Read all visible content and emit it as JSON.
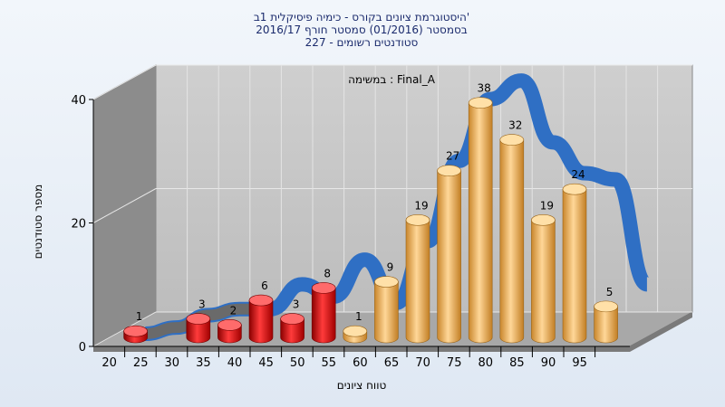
{
  "chart_data": {
    "type": "bar",
    "title_lines": [
      "היסטוגרמת ציונים בקורס - כימיה פיסיקלית 1ב'",
      "בסמסטר  (01/2016)  סמסטר חורף  2016/17",
      "סטודנטים רשומים - 227"
    ],
    "inner_label": "במשימה : Final_A",
    "xlabel": "טווח ציונים",
    "ylabel": "מספר סטודנטים",
    "x_ticks": [
      "20",
      "25",
      "30",
      "35",
      "40",
      "45",
      "50",
      "55",
      "60",
      "65",
      "70",
      "75",
      "80",
      "85",
      "90",
      "95"
    ],
    "y_ticks": [
      "0",
      "20",
      "40"
    ],
    "ylim": [
      0,
      40
    ],
    "categories": [
      "20",
      "30",
      "35",
      "40",
      "45",
      "50",
      "55",
      "60",
      "65",
      "70",
      "75",
      "80",
      "85",
      "90",
      "95"
    ],
    "values": [
      1,
      3,
      2,
      6,
      3,
      8,
      1,
      9,
      19,
      27,
      38,
      32,
      19,
      24,
      5
    ],
    "colors": {
      "fail": "#d8141a",
      "pass": "#f0b04e",
      "curve": "#2f6fc4",
      "curve_grey": "#6a6a6a",
      "wall": "#c2c2c2",
      "side_wall": "#8c8c8c",
      "floor": "#a8a8a8"
    },
    "pass_threshold": 55,
    "distribution_curve": {
      "x": [
        20,
        25,
        30,
        35,
        40,
        45,
        50,
        55,
        60,
        65,
        70,
        75,
        80,
        85,
        90,
        95,
        100
      ],
      "y": [
        0,
        1,
        3,
        4,
        4,
        8,
        6,
        12,
        5,
        15,
        28,
        38,
        41,
        31,
        26,
        25,
        8
      ]
    }
  }
}
